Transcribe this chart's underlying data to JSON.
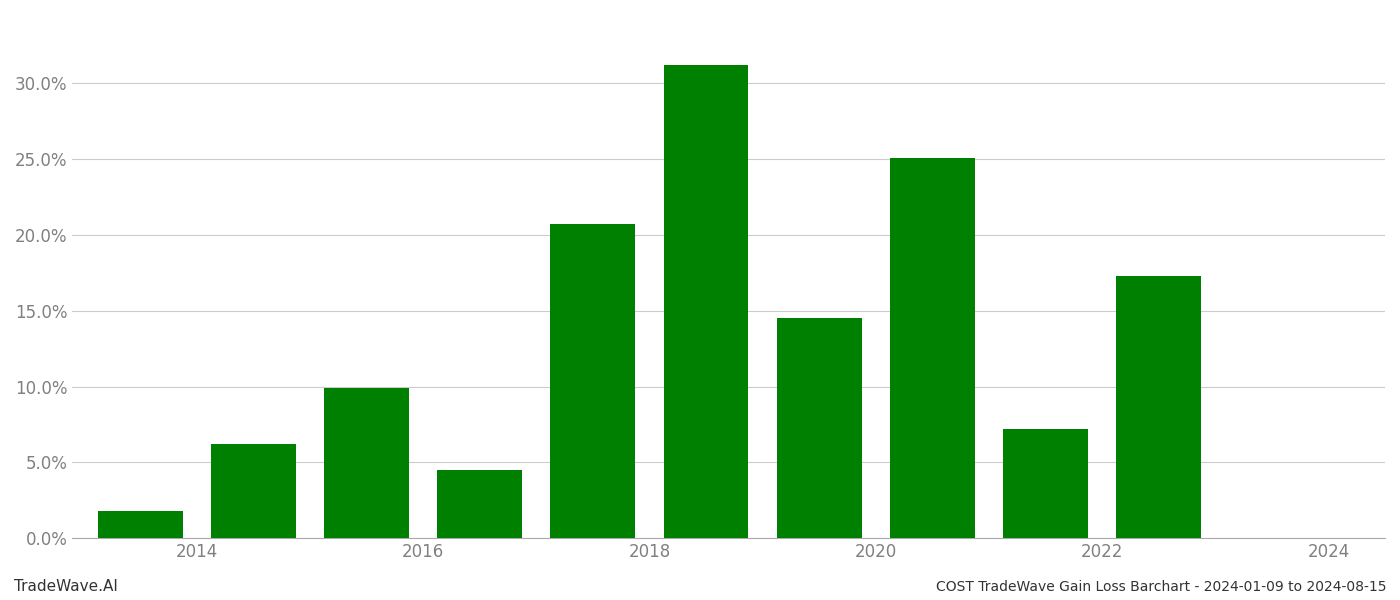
{
  "years": [
    2014,
    2015,
    2016,
    2017,
    2018,
    2019,
    2020,
    2021,
    2022,
    2023,
    2024
  ],
  "values": [
    0.018,
    0.062,
    0.099,
    0.045,
    0.207,
    0.312,
    0.145,
    0.251,
    0.072,
    0.173,
    null
  ],
  "bar_color": "#008000",
  "background_color": "#ffffff",
  "grid_color": "#cccccc",
  "ylabel_color": "#808080",
  "xlabel_color": "#808080",
  "title_text": "COST TradeWave Gain Loss Barchart - 2024-01-09 to 2024-08-15",
  "watermark_text": "TradeWave.AI",
  "ylim": [
    0,
    0.345
  ],
  "yticks": [
    0.0,
    0.05,
    0.1,
    0.15,
    0.2,
    0.25,
    0.3
  ],
  "bar_width": 0.75,
  "tick_fontsize": 12,
  "watermark_fontsize": 11,
  "footer_fontsize": 10,
  "xtick_positions": [
    2014.5,
    2016.5,
    2018.5,
    2020.5,
    2022.5,
    2024.5
  ],
  "xtick_labels": [
    "2014",
    "2016",
    "2018",
    "2020",
    "2022",
    "2024"
  ]
}
